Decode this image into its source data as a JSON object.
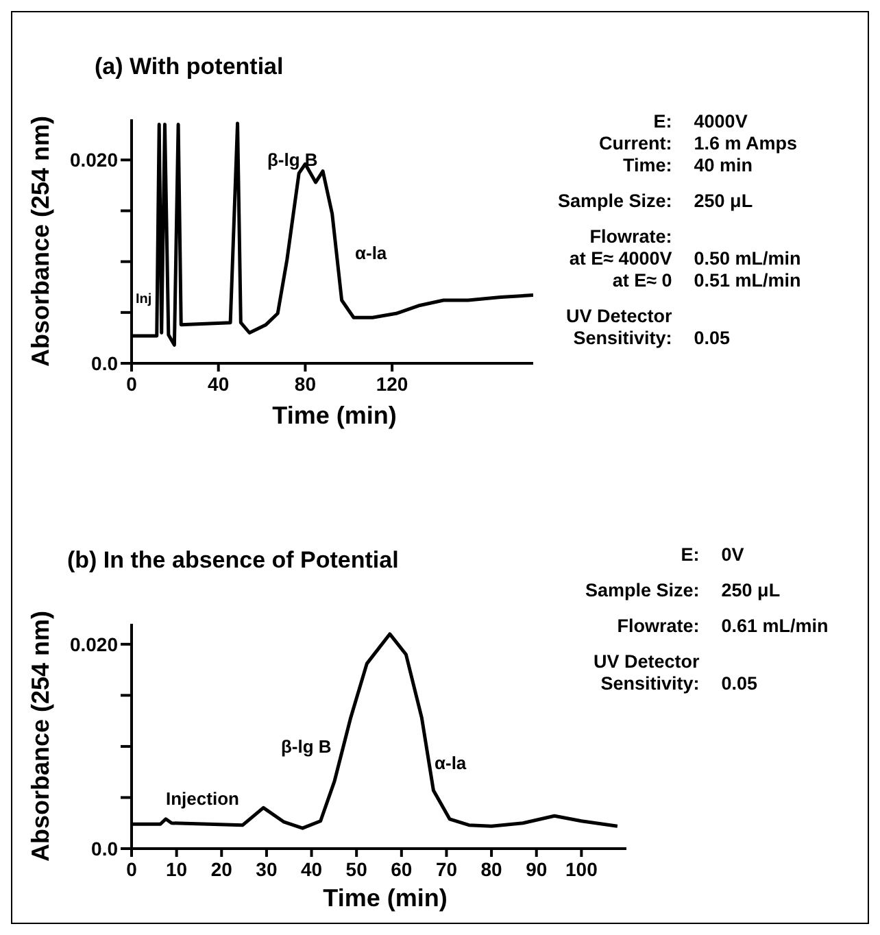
{
  "chart_data": [
    {
      "type": "line",
      "title": "(a) With potential",
      "xlabel": "Time (min)",
      "ylabel": "Absorbance (254 nm)",
      "x": [
        0,
        11.6,
        12.7,
        13.8,
        15.3,
        17,
        19.7,
        21.5,
        22.8,
        45.5,
        48.8,
        50.3,
        54.3,
        61.9,
        67.3,
        71.6,
        77.1,
        80,
        84.8,
        88.1,
        92.4,
        96.8,
        102.3,
        111,
        121.9,
        132.8,
        143.7,
        155,
        170,
        185
      ],
      "values": [
        0.0027,
        0.0027,
        0.0235,
        0.003,
        0.0235,
        0.0028,
        0.0018,
        0.0235,
        0.0038,
        0.004,
        0.0236,
        0.004,
        0.003,
        0.0038,
        0.0049,
        0.0102,
        0.0187,
        0.0196,
        0.0178,
        0.0189,
        0.0147,
        0.0062,
        0.0045,
        0.0045,
        0.0049,
        0.0057,
        0.0062,
        0.0062,
        0.0065,
        0.0067
      ],
      "color": "#000000",
      "xlim": [
        0,
        185
      ],
      "xticks": [
        0,
        40,
        80,
        120
      ],
      "ylim": [
        0,
        0.024
      ],
      "yticks": [
        {
          "value": 0,
          "label": "0.0"
        },
        {
          "value": 0.005,
          "label": null
        },
        {
          "value": 0.01,
          "label": null
        },
        {
          "value": 0.015,
          "label": null
        },
        {
          "value": 0.02,
          "label": "0.020"
        }
      ],
      "annotations": [
        "Inj",
        "β-lg B",
        "α-la"
      ]
    },
    {
      "type": "other",
      "annotations": [
        "E:\nCurrent:\nTime:",
        "4000V\n1.6 m Amps\n40 min",
        "Sample Size:",
        "250 μL",
        "Flowrate:\nat E≈ 4000V\nat E≈ 0",
        "0.50 mL/min\n0.51 mL/min",
        "UV Detector\nSensitivity:",
        "0.05"
      ]
    },
    {
      "type": "line",
      "title": "(b) In the absence of Potential",
      "xlabel": "Time (min)",
      "ylabel": "Absorbance (254 nm)",
      "x": [
        0,
        6.4,
        7.6,
        8.9,
        24.7,
        29.3,
        33.9,
        38,
        42,
        45.1,
        48.7,
        52.3,
        57.4,
        61,
        64.5,
        67.1,
        70.7,
        75,
        80,
        87,
        94,
        100,
        108
      ],
      "values": [
        0.0024,
        0.0024,
        0.0029,
        0.0025,
        0.0023,
        0.004,
        0.0026,
        0.002,
        0.0027,
        0.0066,
        0.0128,
        0.0181,
        0.021,
        0.019,
        0.0128,
        0.0057,
        0.0029,
        0.0023,
        0.0022,
        0.0025,
        0.0032,
        0.0027,
        0.0022
      ],
      "color": "#000000",
      "xlim": [
        0,
        110
      ],
      "xticks": [
        0,
        10,
        20,
        30,
        40,
        50,
        60,
        70,
        80,
        90,
        100
      ],
      "ylim": [
        0,
        0.022
      ],
      "yticks": [
        {
          "value": 0,
          "label": "0.0"
        },
        {
          "value": 0.005,
          "label": null
        },
        {
          "value": 0.01,
          "label": null
        },
        {
          "value": 0.015,
          "label": null
        },
        {
          "value": 0.02,
          "label": "0.020"
        }
      ],
      "annotations": [
        "Injection",
        "β-lg B",
        "α-la"
      ]
    },
    {
      "type": "other",
      "annotations": [
        "E:",
        "0V",
        "Sample Size:",
        "250 μL",
        "Flowrate:",
        "0.61 mL/min",
        "UV Detector\nSensitivity:",
        "0.05"
      ]
    }
  ]
}
